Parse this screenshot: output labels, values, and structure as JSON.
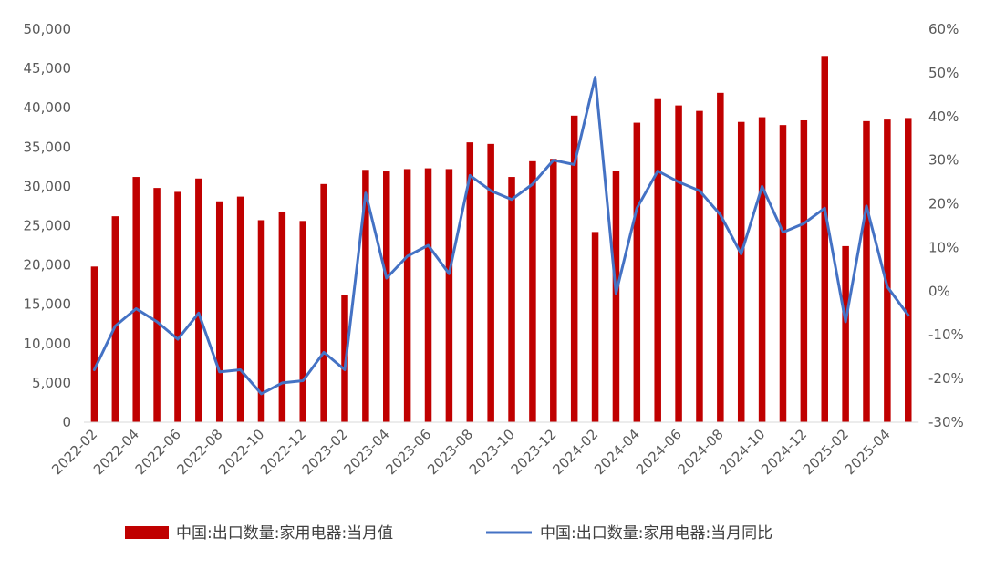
{
  "chart_data": {
    "type": "bar",
    "title": "",
    "xlabel": "",
    "ylabel": "",
    "grid": false,
    "legend_position": "bottom",
    "categories": [
      "2022-02",
      "2022-03",
      "2022-04",
      "2022-05",
      "2022-06",
      "2022-07",
      "2022-08",
      "2022-09",
      "2022-10",
      "2022-11",
      "2022-12",
      "2023-01",
      "2023-02",
      "2023-03",
      "2023-04",
      "2023-05",
      "2023-06",
      "2023-07",
      "2023-08",
      "2023-09",
      "2023-10",
      "2023-11",
      "2023-12",
      "2024-01",
      "2024-02",
      "2024-03",
      "2024-04",
      "2024-05",
      "2024-06",
      "2024-07",
      "2024-08",
      "2024-09",
      "2024-10",
      "2024-11",
      "2024-12",
      "2025-01",
      "2025-02",
      "2025-03",
      "2025-04",
      "2025-05"
    ],
    "x_tick_labels": [
      "2022-02",
      "2022-04",
      "2022-06",
      "2022-08",
      "2022-10",
      "2022-12",
      "2023-02",
      "2023-04",
      "2023-06",
      "2023-08",
      "2023-10",
      "2023-12",
      "2024-02",
      "2024-04",
      "2024-06",
      "2024-08",
      "2024-10",
      "2024-12",
      "2025-02",
      "2025-04"
    ],
    "y_left": {
      "ticks": [
        "0",
        "5,000",
        "10,000",
        "15,000",
        "20,000",
        "25,000",
        "30,000",
        "35,000",
        "40,000",
        "45,000",
        "50,000"
      ],
      "ylim": [
        0,
        50000
      ]
    },
    "y_right": {
      "ticks": [
        "-30%",
        "-20%",
        "-10%",
        "0%",
        "10%",
        "20%",
        "30%",
        "40%",
        "50%",
        "60%"
      ],
      "ylim": [
        -30,
        60
      ]
    },
    "series": [
      {
        "name": "中国:出口数量:家用电器:当月值",
        "type": "bar",
        "axis": "left",
        "color": "#c00000",
        "values": [
          19800,
          26200,
          31200,
          29800,
          29300,
          31000,
          28100,
          28700,
          25700,
          26800,
          25600,
          30300,
          16200,
          32100,
          31900,
          32200,
          32300,
          32200,
          35600,
          35400,
          31200,
          33200,
          33500,
          39000,
          24200,
          32000,
          38100,
          41100,
          40300,
          39600,
          41900,
          38200,
          38800,
          37800,
          38400,
          46600,
          22400,
          38300,
          38500,
          38700
        ]
      },
      {
        "name": "中国:出口数量:家用电器:当月同比",
        "type": "line",
        "axis": "right",
        "color": "#4472c4",
        "values": [
          -18,
          -8,
          -4,
          -7,
          -11,
          -5,
          -18.5,
          -18,
          -23.5,
          -21,
          -20.5,
          -14,
          -18,
          22.5,
          3,
          8,
          10.5,
          4,
          26.5,
          23,
          21,
          24.5,
          30,
          29,
          49,
          -0.5,
          19,
          27.5,
          25,
          23,
          17.5,
          8.5,
          24,
          13.5,
          15.5,
          19,
          -7,
          19.5,
          1,
          -5.5
        ]
      }
    ]
  }
}
